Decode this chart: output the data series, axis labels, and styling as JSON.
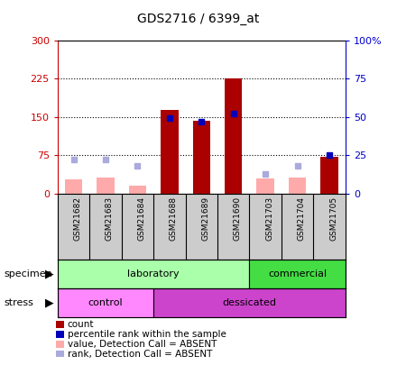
{
  "title": "GDS2716 / 6399_at",
  "samples": [
    "GSM21682",
    "GSM21683",
    "GSM21684",
    "GSM21688",
    "GSM21689",
    "GSM21690",
    "GSM21703",
    "GSM21704",
    "GSM21705"
  ],
  "count_values": [
    0,
    0,
    0,
    163,
    143,
    225,
    0,
    0,
    72
  ],
  "count_absent": [
    28,
    32,
    15,
    0,
    0,
    0,
    30,
    32,
    0
  ],
  "percentile_present": [
    null,
    null,
    null,
    49,
    47,
    52,
    null,
    null,
    25
  ],
  "percentile_absent": [
    22,
    22,
    18,
    null,
    null,
    null,
    13,
    18,
    null
  ],
  "ylim_left": [
    0,
    300
  ],
  "ylim_right": [
    0,
    100
  ],
  "left_ticks": [
    0,
    75,
    150,
    225,
    300
  ],
  "right_ticks": [
    0,
    25,
    50,
    75,
    100
  ],
  "left_tick_labels": [
    "0",
    "75",
    "150",
    "225",
    "300"
  ],
  "right_tick_labels": [
    "0",
    "25",
    "50",
    "75",
    "100%"
  ],
  "color_count_present": "#AA0000",
  "color_count_absent": "#FFAAAA",
  "color_percentile_present": "#0000BB",
  "color_percentile_absent": "#AAAADD",
  "specimen_groups": [
    {
      "label": "laboratory",
      "start": 0,
      "end": 6,
      "color": "#AAFFAA"
    },
    {
      "label": "commercial",
      "start": 6,
      "end": 9,
      "color": "#44DD44"
    }
  ],
  "stress_groups": [
    {
      "label": "control",
      "start": 0,
      "end": 3,
      "color": "#FF88FF"
    },
    {
      "label": "dessicated",
      "start": 3,
      "end": 9,
      "color": "#CC44CC"
    }
  ],
  "bar_width": 0.55,
  "marker_size": 5,
  "legend_items": [
    {
      "color": "#AA0000",
      "label": "count"
    },
    {
      "color": "#0000BB",
      "label": "percentile rank within the sample"
    },
    {
      "color": "#FFAAAA",
      "label": "value, Detection Call = ABSENT"
    },
    {
      "color": "#AAAADD",
      "label": "rank, Detection Call = ABSENT"
    }
  ]
}
